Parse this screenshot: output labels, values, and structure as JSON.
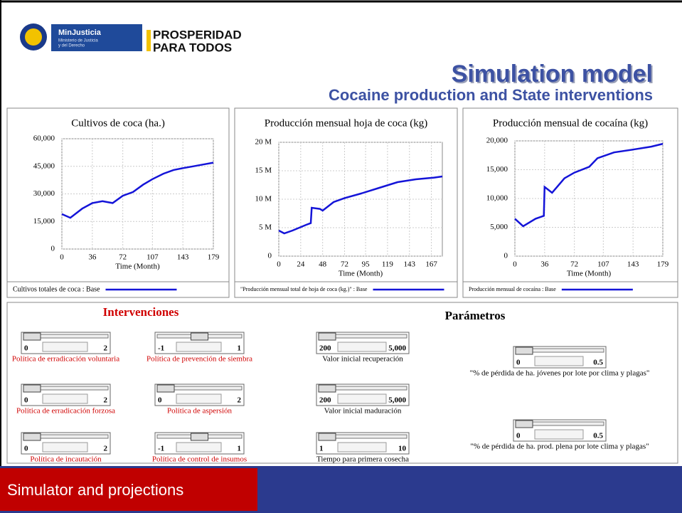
{
  "header": {
    "title": "Simulation model",
    "subtitle": "Cocaine production and State interventions",
    "logo_ministry": "MinJusticia",
    "logo_ministry_sub1": "Ministerio de Justicia",
    "logo_ministry_sub2": "y del Derecho",
    "logo_gov1": "PROSPERIDAD",
    "logo_gov2": "PARA TODOS"
  },
  "chart_data": [
    {
      "type": "line",
      "title": "Cultivos de coca (ha.)",
      "x_label": "Time (Month)",
      "x": [
        0,
        10,
        24,
        36,
        48,
        60,
        72,
        84,
        96,
        107,
        120,
        132,
        143,
        155,
        167,
        179
      ],
      "series": [
        {
          "name": "Cultivos totales de coca : Base",
          "color": "#1414d8",
          "values": [
            19000,
            17000,
            22000,
            25000,
            26000,
            25000,
            29000,
            31000,
            35000,
            38000,
            41000,
            43000,
            44000,
            45000,
            46000,
            47000
          ]
        }
      ],
      "xlim": [
        0,
        179
      ],
      "xticks": [
        0,
        36,
        72,
        107,
        143,
        179
      ],
      "ylim": [
        0,
        60000
      ],
      "yticks": [
        0,
        {
          "value": 15000,
          "label": "15,000"
        },
        {
          "value": 30000,
          "label": "30,000"
        },
        {
          "value": 45000,
          "label": "45,000"
        },
        {
          "value": 60000,
          "label": "60,000"
        }
      ],
      "grid": true
    },
    {
      "type": "line",
      "title": "Producción mensual hoja de coca (kg)",
      "x_label": "Time (Month)",
      "x": [
        0,
        6,
        15,
        30,
        35,
        36,
        45,
        48,
        60,
        72,
        90,
        110,
        130,
        150,
        170,
        179
      ],
      "series": [
        {
          "name": "\"Producción mensual total de hoja de coca (kg.)\" : Base",
          "color": "#1414d8",
          "values": [
            4500000,
            4000000,
            4500000,
            5500000,
            5800000,
            8500000,
            8300000,
            8000000,
            9500000,
            10200000,
            11000000,
            12000000,
            13000000,
            13500000,
            13800000,
            14000000
          ]
        }
      ],
      "xlim": [
        0,
        179
      ],
      "xticks": [
        0,
        24,
        48,
        72,
        95,
        119,
        143,
        167
      ],
      "ylim": [
        0,
        20000000
      ],
      "yticks": [
        0,
        {
          "value": 5000000,
          "label": "5 M"
        },
        {
          "value": 10000000,
          "label": "10 M"
        },
        {
          "value": 15000000,
          "label": "15 M"
        },
        {
          "value": 20000000,
          "label": "20 M"
        }
      ],
      "grid": true
    },
    {
      "type": "line",
      "title": "Producción mensual de cocaína (kg)",
      "x_label": "Time (Month)",
      "x": [
        0,
        10,
        25,
        35,
        36,
        45,
        60,
        72,
        90,
        100,
        120,
        143,
        165,
        179
      ],
      "series": [
        {
          "name": "Producción mensual de cocaína : Base",
          "color": "#1414d8",
          "values": [
            6500,
            5200,
            6500,
            7000,
            12000,
            11000,
            13500,
            14500,
            15500,
            17000,
            18000,
            18500,
            19000,
            19500
          ]
        }
      ],
      "xlim": [
        0,
        179
      ],
      "xticks": [
        0,
        36,
        72,
        107,
        143,
        179
      ],
      "ylim": [
        0,
        20000
      ],
      "yticks": [
        0,
        {
          "value": 5000,
          "label": "5,000"
        },
        {
          "value": 10000,
          "label": "10,000"
        },
        {
          "value": 15000,
          "label": "15,000"
        },
        {
          "value": 20000,
          "label": "20,000"
        }
      ],
      "grid": true
    }
  ],
  "controls": {
    "interventions_title": "Intervenciones",
    "parameters_title": "Parámetros",
    "sliders": [
      {
        "label": "Política de erradicación voluntaria",
        "min": 0,
        "max": 2,
        "value": 0
      },
      {
        "label": "Política de erradicación forzosa",
        "min": 0,
        "max": 2,
        "value": 0
      },
      {
        "label": "Política de incautación",
        "min": 0,
        "max": 2,
        "value": 0
      },
      {
        "label": "Política de prevención de siembra",
        "min": -1,
        "max": 1,
        "value": 0
      },
      {
        "label": "Política de aspersión",
        "min": 0,
        "max": 2,
        "value": 0
      },
      {
        "label": "Política de control de insumos",
        "min": -1,
        "max": 1,
        "value": 0
      },
      {
        "label": "Valor inicial recuperación",
        "min": 200,
        "max": 5000,
        "max_label": "5,000",
        "value": 200
      },
      {
        "label": "Valor inicial maduración",
        "min": 200,
        "max": 5000,
        "max_label": "5,000",
        "value": 200
      },
      {
        "label": "Tiempo para primera cosecha",
        "min": 1,
        "max": 10,
        "value": 1
      },
      {
        "label": "\"% de pérdida de ha. jóvenes por lote por clima y plagas\"",
        "min": 0,
        "max": 0.5,
        "value": 0
      },
      {
        "label": "\"% de pérdida de ha. prod. plena por lote clima y plagas\"",
        "min": 0,
        "max": 0.5,
        "value": 0
      }
    ]
  },
  "footer": {
    "label": "Simulator and projections"
  }
}
